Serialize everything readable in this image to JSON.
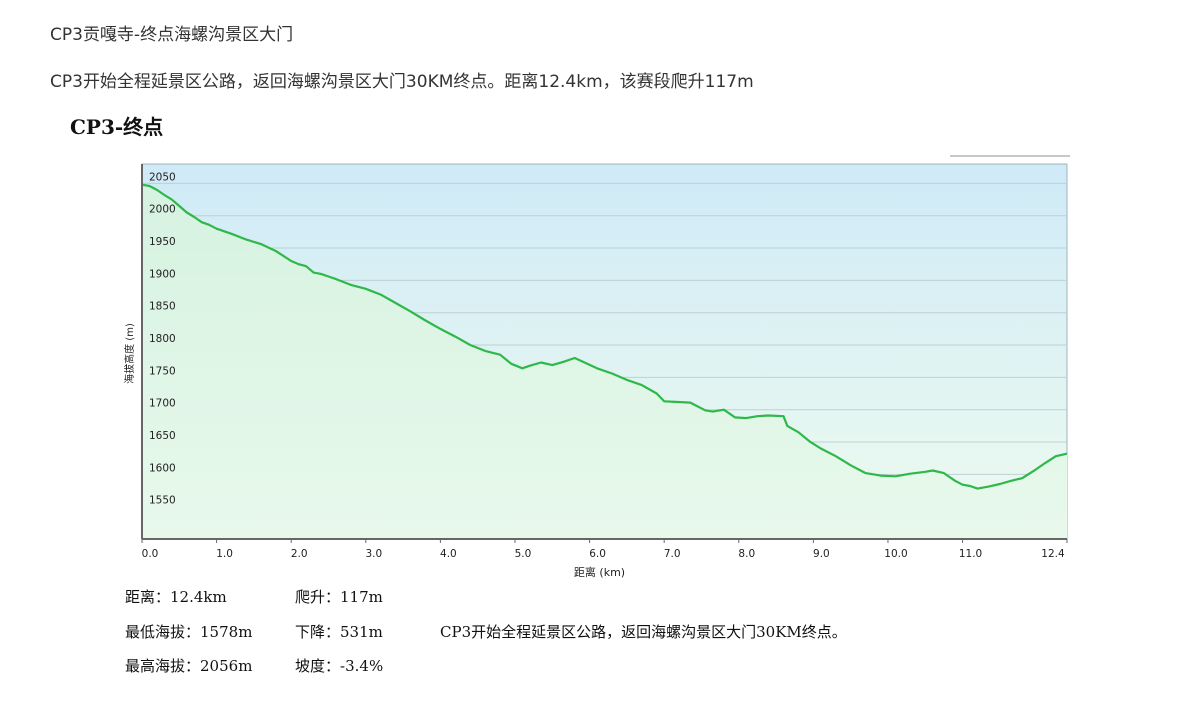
{
  "text": {
    "line1": "CP3贡嘎寺-终点海螺沟景区大门",
    "line2": "CP3开始全程延景区公路，返回海螺沟景区大门30KM终点。距离12.4km，该赛段爬升117m",
    "image_title": "CP3-终点"
  },
  "stats": {
    "distance_label": "距离：",
    "distance_value": "12.4km",
    "climb_label": "爬升：",
    "climb_value": "117m",
    "min_alt_label": "最低海拔：",
    "min_alt_value": "1578m",
    "descent_label": "下降：",
    "descent_value": "531m",
    "max_alt_label": "最高海拔：",
    "max_alt_value": "2056m",
    "slope_label": "坡度：",
    "slope_value": "-3.4%",
    "description": "CP3开始全程延景区公路，返回海螺沟景区大门30KM终点。"
  },
  "chart_data": {
    "type": "area",
    "xlabel": "距离 (km)",
    "ylabel": "海拔高度 (m)",
    "xlim": [
      0,
      12.4
    ],
    "ylim": [
      1500,
      2080
    ],
    "x_ticks": [
      "0.0",
      "1.0",
      "2.0",
      "3.0",
      "4.0",
      "5.0",
      "6.0",
      "7.0",
      "8.0",
      "9.0",
      "10.0",
      "11.0",
      "12.4"
    ],
    "x_tick_values": [
      0,
      1,
      2,
      3,
      4,
      5,
      6,
      7,
      8,
      9,
      10,
      11,
      12.4
    ],
    "y_ticks": [
      1550,
      1600,
      1650,
      1700,
      1750,
      1800,
      1850,
      1900,
      1950,
      2000,
      2050
    ],
    "grid": true,
    "colors": {
      "line": "#2eb84a",
      "bg_top": "#cfeaf7",
      "bg_bottom": "#eefbef",
      "fill_top": "#d6f2e0",
      "fill_bottom": "#e8f9ec",
      "axis": "#666666",
      "grid": "#bfcfd6"
    },
    "series": [
      {
        "x": [
          0,
          0.1,
          0.2,
          0.3,
          0.4,
          0.5,
          0.6,
          0.7,
          0.8,
          0.9,
          1.0,
          1.2,
          1.4,
          1.6,
          1.8,
          2.0,
          2.1,
          2.2,
          2.3,
          2.4,
          2.5,
          2.6,
          2.8,
          3.0,
          3.2,
          3.4,
          3.6,
          3.8,
          4.0,
          4.2,
          4.4,
          4.6,
          4.8,
          4.95,
          5.1,
          5.2,
          5.35,
          5.5,
          5.65,
          5.8,
          5.95,
          6.1,
          6.3,
          6.5,
          6.7,
          6.9,
          7.0,
          7.15,
          7.35,
          7.55,
          7.65,
          7.8,
          7.95,
          8.1,
          8.25,
          8.4,
          8.6,
          8.65,
          8.8,
          8.95,
          9.1,
          9.3,
          9.5,
          9.7,
          9.9,
          10.1,
          10.3,
          10.5,
          10.6,
          10.75,
          10.9,
          11.0,
          11.1,
          11.2,
          11.35,
          11.5,
          11.65,
          11.8,
          11.95,
          12.1,
          12.25,
          12.4
        ],
        "y": [
          2048,
          2046,
          2040,
          2032,
          2025,
          2015,
          2005,
          1998,
          1990,
          1986,
          1980,
          1972,
          1963,
          1956,
          1945,
          1930,
          1925,
          1922,
          1912,
          1910,
          1906,
          1902,
          1893,
          1887,
          1878,
          1865,
          1852,
          1838,
          1825,
          1813,
          1800,
          1791,
          1785,
          1771,
          1764,
          1768,
          1773,
          1769,
          1774,
          1780,
          1772,
          1764,
          1756,
          1746,
          1738,
          1725,
          1713,
          1712,
          1711,
          1699,
          1697,
          1700,
          1688,
          1687,
          1690,
          1691,
          1690,
          1675,
          1665,
          1651,
          1640,
          1628,
          1614,
          1602,
          1598,
          1597,
          1601,
          1604,
          1606,
          1602,
          1590,
          1584,
          1582,
          1578,
          1581,
          1585,
          1590,
          1594,
          1605,
          1617,
          1628,
          1632
        ]
      }
    ]
  }
}
